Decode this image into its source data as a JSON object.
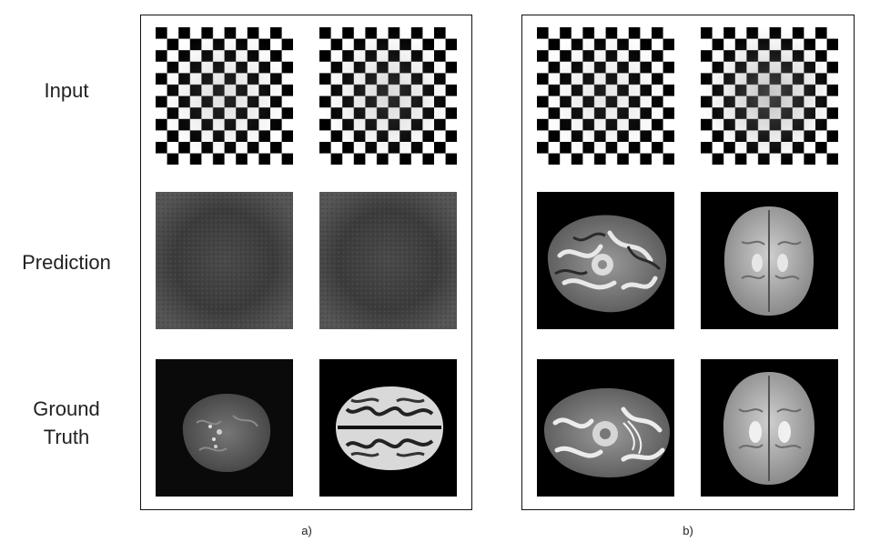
{
  "row_labels": {
    "input": "Input",
    "prediction": "Prediction",
    "ground_truth_line1": "Ground",
    "ground_truth_line2": "Truth"
  },
  "panels": {
    "a": {
      "caption": "a)"
    },
    "b": {
      "caption": "b)"
    }
  },
  "tiles": {
    "input": "checkerboard input",
    "prediction_a": "noisy grey prediction",
    "prediction_b": "brain MRI prediction",
    "ground_truth": "brain MRI ground truth"
  }
}
